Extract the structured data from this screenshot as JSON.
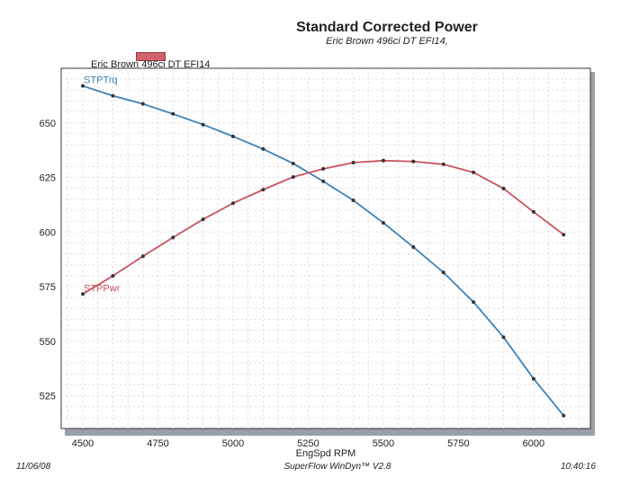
{
  "chart_data": {
    "type": "line",
    "title": "Standard Corrected Power",
    "subtitle": "Eric Brown 496ci DT EFI14,",
    "legend": [
      "Eric Brown 496ci DT EFI14"
    ],
    "legend_placement": "top-left",
    "xlabel": "EngSpd  RPM",
    "ylabel": "",
    "xlim": [
      4428,
      6189
    ],
    "ylim": [
      510,
      675
    ],
    "xticks": [
      4500,
      4750,
      5000,
      5250,
      5500,
      5750,
      6000
    ],
    "yticks": [
      525,
      550,
      575,
      600,
      625,
      650
    ],
    "grid": true,
    "x": [
      4500,
      4600,
      4700,
      4800,
      4900,
      5000,
      5100,
      5200,
      5300,
      5400,
      5500,
      5600,
      5700,
      5800,
      5900,
      6000,
      6100
    ],
    "series": [
      {
        "name": "STPTrq",
        "color": "#3c82b8",
        "values": [
          666.9,
          662.4,
          658.7,
          654.1,
          649.2,
          643.8,
          638.0,
          631.4,
          623.2,
          614.5,
          604.2,
          593.1,
          581.5,
          567.9,
          551.8,
          532.8,
          515.9
        ]
      },
      {
        "name": "STPPwr",
        "color": "#c9545e",
        "values": [
          571.6,
          579.9,
          588.9,
          597.5,
          605.8,
          613.2,
          619.4,
          625.2,
          628.9,
          631.8,
          632.7,
          632.3,
          631.0,
          627.3,
          619.9,
          609.2,
          598.8
        ]
      }
    ]
  },
  "footer": {
    "date": "11/06/08",
    "software": "SuperFlow WinDyn™ V2.8",
    "time": "10:40:16"
  }
}
